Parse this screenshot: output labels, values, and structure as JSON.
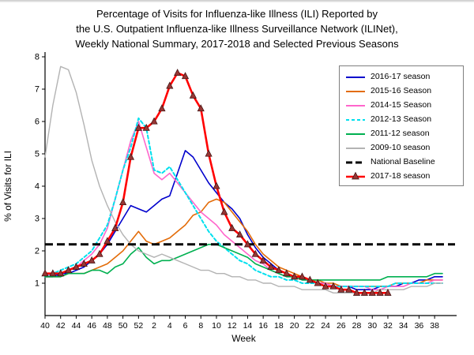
{
  "chart_data": {
    "type": "line",
    "title_lines": [
      "Percentage of Visits for Influenza-like Illness (ILI) Reported by",
      "the U.S. Outpatient Influenza-like Illness Surveillance Network (ILINet),",
      "Weekly National Summary, 2017-2018 and Selected Previous Seasons"
    ],
    "xlabel": "Week",
    "ylabel": "% of Visits for ILI",
    "ylim": [
      0,
      8
    ],
    "yticks": [
      "1",
      "2",
      "3",
      "4",
      "5",
      "6",
      "7",
      "8"
    ],
    "weeks": [
      40,
      41,
      42,
      43,
      44,
      45,
      46,
      47,
      48,
      49,
      50,
      51,
      52,
      1,
      2,
      3,
      4,
      5,
      6,
      7,
      8,
      9,
      10,
      11,
      12,
      13,
      14,
      15,
      16,
      17,
      18,
      19,
      20,
      21,
      22,
      23,
      24,
      25,
      26,
      27,
      28,
      29,
      30,
      31,
      32,
      33,
      34,
      35,
      36,
      37,
      38,
      39
    ],
    "grid": false,
    "legend_position": "top-right",
    "baseline": {
      "name": "National Baseline",
      "value": 2.2,
      "color": "#000000",
      "dash": "10 5",
      "width": 3
    },
    "series": [
      {
        "name": "2016-17 season",
        "color": "#0000cc",
        "width": 1.6,
        "dash": "",
        "marker": "",
        "values": [
          1.2,
          1.2,
          1.3,
          1.3,
          1.4,
          1.5,
          1.7,
          1.9,
          2.2,
          2.6,
          3.0,
          3.4,
          3.3,
          3.2,
          3.4,
          3.6,
          3.7,
          4.4,
          5.1,
          4.9,
          4.5,
          4.1,
          3.8,
          3.5,
          3.3,
          3.0,
          2.5,
          2.1,
          1.8,
          1.6,
          1.4,
          1.3,
          1.2,
          1.2,
          1.1,
          1.0,
          1.0,
          0.9,
          0.9,
          0.9,
          0.8,
          0.8,
          0.8,
          0.9,
          0.9,
          0.9,
          1.0,
          1.0,
          1.1,
          1.1,
          1.2,
          1.2
        ]
      },
      {
        "name": "2015-16 Season",
        "color": "#e36c09",
        "width": 1.6,
        "dash": "",
        "marker": "",
        "values": [
          1.2,
          1.2,
          1.2,
          1.3,
          1.3,
          1.3,
          1.4,
          1.5,
          1.6,
          1.8,
          2.0,
          2.3,
          2.6,
          2.3,
          2.2,
          2.3,
          2.4,
          2.6,
          2.8,
          3.1,
          3.2,
          3.5,
          3.6,
          3.5,
          3.2,
          2.9,
          2.6,
          2.2,
          1.9,
          1.7,
          1.5,
          1.4,
          1.3,
          1.2,
          1.1,
          1.1,
          1.0,
          1.0,
          0.9,
          0.9,
          0.9,
          0.9,
          0.9,
          0.9,
          0.9,
          1.0,
          1.0,
          1.0,
          1.0,
          1.1,
          1.1,
          1.1
        ]
      },
      {
        "name": "2014-15 Season",
        "color": "#ff66cc",
        "width": 1.6,
        "dash": "",
        "marker": "",
        "values": [
          1.2,
          1.3,
          1.3,
          1.4,
          1.5,
          1.7,
          1.9,
          2.2,
          2.7,
          3.6,
          4.5,
          5.4,
          6.0,
          5.2,
          4.4,
          4.2,
          4.4,
          4.1,
          3.8,
          3.5,
          3.2,
          3.0,
          2.8,
          2.5,
          2.3,
          2.1,
          1.9,
          1.7,
          1.6,
          1.4,
          1.3,
          1.2,
          1.2,
          1.1,
          1.1,
          1.0,
          1.0,
          0.9,
          0.9,
          0.9,
          0.9,
          0.9,
          0.8,
          0.8,
          0.9,
          0.9,
          0.9,
          1.0,
          1.0,
          1.0,
          1.1,
          1.1
        ]
      },
      {
        "name": "2012-13 Season",
        "color": "#00e0ee",
        "width": 2,
        "dash": "4 3",
        "marker": "",
        "values": [
          1.2,
          1.3,
          1.4,
          1.5,
          1.6,
          1.8,
          2.0,
          2.4,
          2.8,
          3.6,
          4.5,
          5.2,
          6.1,
          5.8,
          4.5,
          4.4,
          4.6,
          4.2,
          3.8,
          3.4,
          3.0,
          2.6,
          2.3,
          2.1,
          1.9,
          1.7,
          1.6,
          1.4,
          1.3,
          1.2,
          1.2,
          1.1,
          1.1,
          1.0,
          1.0,
          1.0,
          0.9,
          0.9,
          0.9,
          0.9,
          0.9,
          0.9,
          0.9,
          0.9,
          0.9,
          1.0,
          1.0,
          1.0,
          1.0,
          1.0,
          1.0,
          1.0
        ]
      },
      {
        "name": "2011-12 season",
        "color": "#00b050",
        "width": 1.6,
        "dash": "",
        "marker": "",
        "values": [
          1.2,
          1.2,
          1.2,
          1.3,
          1.3,
          1.3,
          1.4,
          1.4,
          1.3,
          1.5,
          1.6,
          1.9,
          2.1,
          1.8,
          1.6,
          1.7,
          1.7,
          1.8,
          1.9,
          2.0,
          2.1,
          2.2,
          2.2,
          2.1,
          2.0,
          1.9,
          1.8,
          1.6,
          1.5,
          1.4,
          1.3,
          1.2,
          1.2,
          1.1,
          1.1,
          1.1,
          1.1,
          1.1,
          1.1,
          1.1,
          1.1,
          1.1,
          1.1,
          1.1,
          1.2,
          1.2,
          1.2,
          1.2,
          1.2,
          1.2,
          1.3,
          1.3
        ]
      },
      {
        "name": "2009-10 season",
        "color": "#b3b3b3",
        "width": 1.4,
        "dash": "",
        "marker": "",
        "values": [
          4.9,
          6.5,
          7.7,
          7.6,
          6.9,
          5.9,
          4.8,
          4.0,
          3.4,
          2.9,
          2.5,
          2.2,
          2.0,
          1.9,
          1.8,
          1.9,
          1.8,
          1.7,
          1.6,
          1.5,
          1.4,
          1.4,
          1.3,
          1.3,
          1.2,
          1.2,
          1.1,
          1.1,
          1.0,
          1.0,
          0.9,
          0.9,
          0.9,
          0.8,
          0.8,
          0.8,
          0.8,
          0.7,
          0.7,
          0.7,
          0.7,
          0.7,
          0.7,
          0.8,
          0.8,
          0.8,
          0.8,
          0.9,
          0.9,
          0.9,
          1.0,
          1.0
        ]
      },
      {
        "name": "2017-18 season",
        "color": "#ff0000",
        "width": 2.6,
        "dash": "",
        "marker": "triangle",
        "marker_fill": "#963634",
        "values": [
          1.3,
          1.3,
          1.3,
          1.4,
          1.5,
          1.6,
          1.7,
          1.9,
          2.3,
          2.7,
          3.5,
          4.9,
          5.8,
          5.8,
          6.0,
          6.4,
          7.1,
          7.5,
          7.4,
          6.8,
          6.4,
          5.0,
          4.0,
          3.2,
          2.7,
          2.5,
          2.2,
          1.9,
          1.7,
          1.5,
          1.4,
          1.3,
          1.2,
          1.2,
          1.1,
          1.0,
          0.9,
          0.9,
          0.8,
          0.8,
          0.7,
          0.7,
          0.7,
          0.7,
          0.7
        ]
      }
    ],
    "legend": [
      {
        "label": "2016-17 season",
        "color": "#0000cc",
        "dash": "",
        "width": 2,
        "marker": ""
      },
      {
        "label": "2015-16 Season",
        "color": "#e36c09",
        "dash": "",
        "width": 2,
        "marker": ""
      },
      {
        "label": "2014-15 Season",
        "color": "#ff66cc",
        "dash": "",
        "width": 2,
        "marker": ""
      },
      {
        "label": "2012-13 Season",
        "color": "#00e0ee",
        "dash": "4 3",
        "width": 2,
        "marker": ""
      },
      {
        "label": "2011-12 season",
        "color": "#00b050",
        "dash": "",
        "width": 2,
        "marker": ""
      },
      {
        "label": "2009-10 season",
        "color": "#b3b3b3",
        "dash": "",
        "width": 2,
        "marker": ""
      },
      {
        "label": "National Baseline",
        "color": "#000000",
        "dash": "8 4",
        "width": 3,
        "marker": ""
      },
      {
        "label": "2017-18 season",
        "color": "#ff0000",
        "dash": "",
        "width": 2.4,
        "marker": "triangle",
        "marker_fill": "#963634"
      }
    ]
  }
}
